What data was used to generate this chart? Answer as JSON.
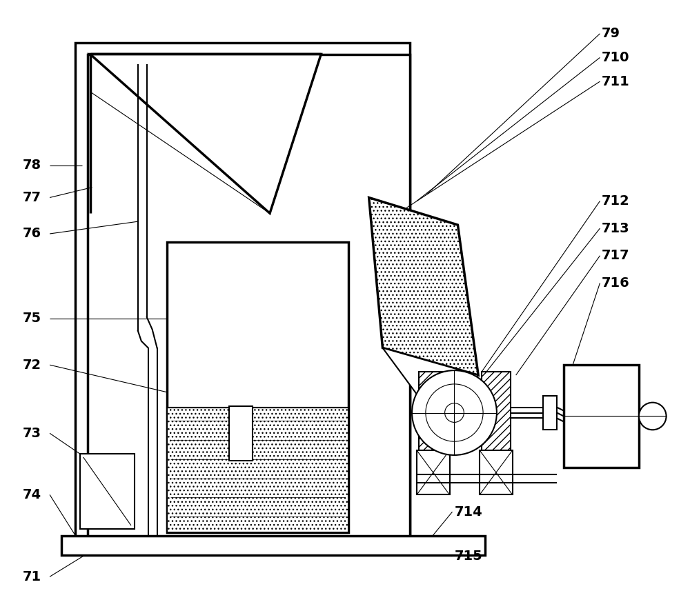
{
  "fig_width": 10.0,
  "fig_height": 8.86,
  "dpi": 100,
  "bg_color": "#ffffff",
  "line_color": "#000000",
  "lw_thick": 2.5,
  "lw_med": 1.5,
  "lw_thin": 0.8,
  "label_fs": 14
}
